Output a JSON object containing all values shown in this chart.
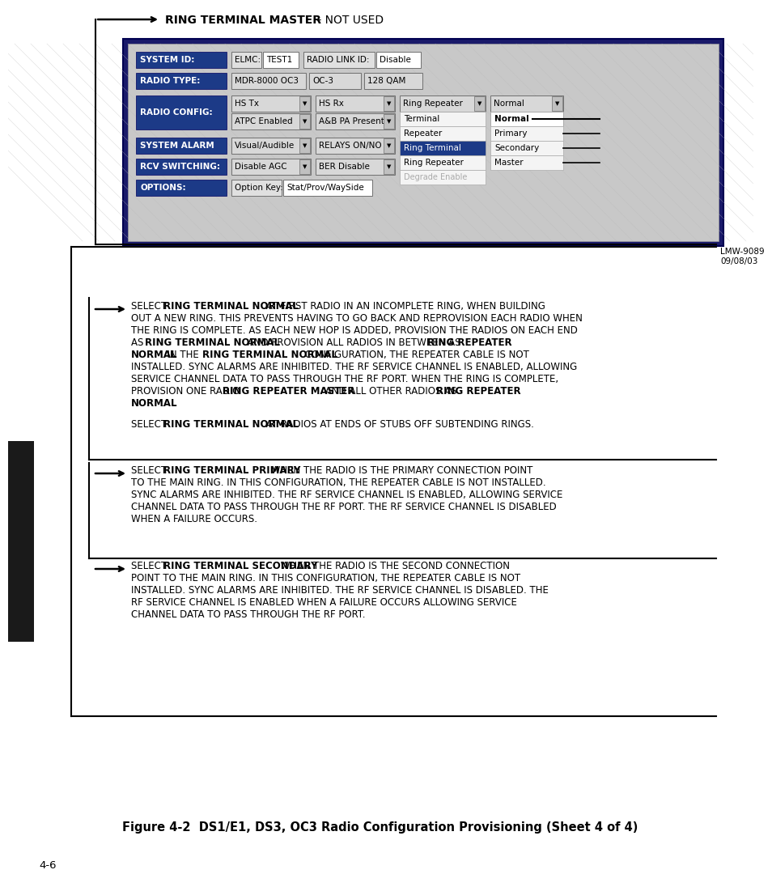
{
  "bg_color": "#ffffff",
  "title": "Figure 4-2  DS1/E1, DS3, OC3 Radio Configuration Provisioning (Sheet 4 of 4)",
  "page_number": "4-6",
  "lmw_label": "LMW-9089\n09/08/03",
  "ring_master_bold": "RING TERMINAL MASTER",
  "ring_master_normal": " – NOT USED",
  "blue_label_bg": "#1c3a87",
  "blue_label_fg": "#ffffff",
  "screen_bg": "#c8c8c8",
  "system_id_label": "SYSTEM ID:",
  "elmc_label": "ELMC:",
  "elmc_value": "TEST1",
  "radio_link_id_label": "RADIO LINK ID:",
  "radio_link_id_value": "Disable",
  "radio_type_label": "RADIO TYPE:",
  "radio_type_v1": "MDR-8000 OC3",
  "radio_type_v2": "OC-3",
  "radio_type_v3": "128 QAM",
  "radio_config_label": "RADIO CONFIG:",
  "hs_tx": "HS Tx",
  "hs_rx": "HS Rx",
  "ring_repeater": "Ring Repeater",
  "normal": "Normal",
  "atpc": "ATPC Enabled",
  "ab_pa": "A&B PA Present",
  "drop_left_items": [
    "Terminal",
    "Repeater",
    "Ring Terminal",
    "Ring Repeater"
  ],
  "drop_left_selected": "Ring Terminal",
  "drop_right_items": [
    "Normal",
    "Primary",
    "Secondary",
    "Master"
  ],
  "system_alarm_label": "SYSTEM ALARM",
  "visual_audible": "Visual/Audible",
  "relays_on_no": "RELAYS ON/NO",
  "rcv_switching_label": "RCV SWITCHING:",
  "disable_agc": "Disable AGC",
  "ber_disable": "BER Disable",
  "options_label": "OPTIONS:",
  "option_key_label": "Option Key:",
  "option_key_value": "Stat/Prov/WaySide",
  "sidebar_color": "#1a1a1a",
  "para1_lines": [
    [
      [
        "SELECT ",
        false
      ],
      [
        "RING TERMINAL NORMAL",
        true
      ],
      [
        " AT FIRST RADIO IN AN INCOMPLETE RING, WHEN BUILDING",
        false
      ]
    ],
    [
      [
        "OUT A NEW RING. THIS PREVENTS HAVING TO GO BACK AND REPROVISION EACH RADIO WHEN",
        false
      ]
    ],
    [
      [
        "THE RING IS COMPLETE. AS EACH NEW HOP IS ADDED, PROVISION THE RADIOS ON EACH END",
        false
      ]
    ],
    [
      [
        "AS ",
        false
      ],
      [
        "RING TERMINAL NORMAL",
        true
      ],
      [
        " AND PROVISION ALL RADIOS IN BETWEEN AS ",
        false
      ],
      [
        "RING REPEATER",
        true
      ]
    ],
    [
      [
        "NORMAL",
        true
      ],
      [
        ". IN THE ",
        false
      ],
      [
        "RING TERMINAL NORMAL",
        true
      ],
      [
        " CONFIGURATION, THE REPEATER CABLE IS NOT",
        false
      ]
    ],
    [
      [
        "INSTALLED. SYNC ALARMS ARE INHIBITED. THE RF SERVICE CHANNEL IS ENABLED, ALLOWING",
        false
      ]
    ],
    [
      [
        "SERVICE CHANNEL DATA TO PASS THROUGH THE RF PORT. WHEN THE RING IS COMPLETE,",
        false
      ]
    ],
    [
      [
        "PROVISION ONE RADIO ",
        false
      ],
      [
        "RING REPEATER MASTER",
        true
      ],
      [
        " AND ALL OTHER RADIOS AS ",
        false
      ],
      [
        "RING REPEATER",
        true
      ]
    ],
    [
      [
        "NORMAL",
        true
      ],
      [
        ".",
        false
      ]
    ]
  ],
  "para1b_lines": [
    [
      [
        "SELECT ",
        false
      ],
      [
        "RING TERMINAL NORMAL",
        true
      ],
      [
        " AT RADIOS AT ENDS OF STUBS OFF SUBTENDING RINGS.",
        false
      ]
    ]
  ],
  "para2_lines": [
    [
      [
        "SELECT ",
        false
      ],
      [
        "RING TERMINAL PRIMARY",
        true
      ],
      [
        " WHEN THE RADIO IS THE PRIMARY CONNECTION POINT",
        false
      ]
    ],
    [
      [
        "TO THE MAIN RING. IN THIS CONFIGURATION, THE REPEATER CABLE IS NOT INSTALLED.",
        false
      ]
    ],
    [
      [
        "SYNC ALARMS ARE INHIBITED. THE RF SERVICE CHANNEL IS ENABLED, ALLOWING SERVICE",
        false
      ]
    ],
    [
      [
        "CHANNEL DATA TO PASS THROUGH THE RF PORT. THE RF SERVICE CHANNEL IS DISABLED",
        false
      ]
    ],
    [
      [
        "WHEN A FAILURE OCCURS.",
        false
      ]
    ]
  ],
  "para3_lines": [
    [
      [
        "SELECT ",
        false
      ],
      [
        "RING TERMINAL SECONDARY",
        true
      ],
      [
        " WHEN THE RADIO IS THE SECOND CONNECTION",
        false
      ]
    ],
    [
      [
        "POINT TO THE MAIN RING. IN THIS CONFIGURATION, THE REPEATER CABLE IS NOT",
        false
      ]
    ],
    [
      [
        "INSTALLED. SYNC ALARMS ARE INHIBITED. THE RF SERVICE CHANNEL IS DISABLED. THE",
        false
      ]
    ],
    [
      [
        "RF SERVICE CHANNEL IS ENABLED WHEN A FAILURE OCCURS ALLOWING SERVICE",
        false
      ]
    ],
    [
      [
        "CHANNEL DATA TO PASS THROUGH THE RF PORT.",
        false
      ]
    ]
  ]
}
